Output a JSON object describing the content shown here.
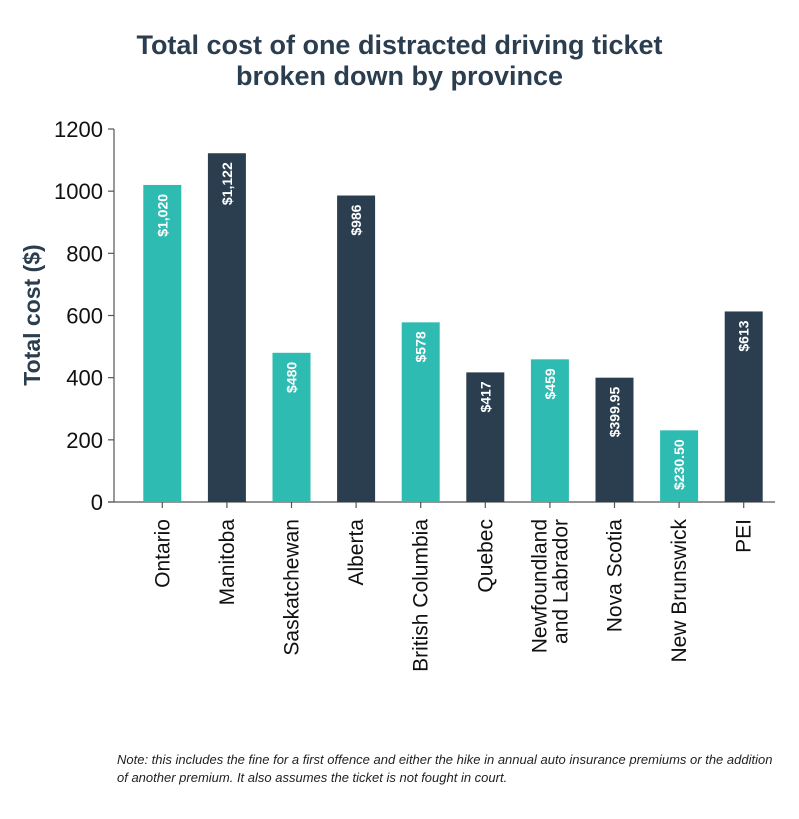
{
  "chart_data": {
    "type": "bar",
    "title_lines": [
      "Total cost of one distracted driving ticket",
      "broken down by province"
    ],
    "ylabel": "Total cost ($)",
    "ylim": [
      0,
      1200
    ],
    "yticks": [
      0,
      200,
      400,
      600,
      800,
      1000,
      1200
    ],
    "categories": [
      "Ontario",
      "Manitoba",
      "Saskatchewan",
      "Alberta",
      "British Columbia",
      "Quebec",
      "Newfoundland and Labrador",
      "Nova Scotia",
      "New Brunswick",
      "PEI"
    ],
    "category_labels": [
      [
        "Ontario"
      ],
      [
        "Manitoba"
      ],
      [
        "Saskatchewan"
      ],
      [
        "Alberta"
      ],
      [
        "British Columbia"
      ],
      [
        "Quebec"
      ],
      [
        "Newfoundland",
        "and Labrador"
      ],
      [
        "Nova Scotia"
      ],
      [
        "New Brunswick"
      ],
      [
        "PEI"
      ]
    ],
    "values": [
      1020,
      1122,
      480,
      986,
      578,
      417,
      459,
      399.95,
      230.5,
      613
    ],
    "data_labels": [
      "$1,020",
      "$1,122",
      "$480",
      "$986",
      "$578",
      "$417",
      "$459",
      "$399.95",
      "$230.50",
      "$613"
    ],
    "bar_colors": [
      "#2dbbb2",
      "#2b3e50",
      "#2dbbb2",
      "#2b3e50",
      "#2dbbb2",
      "#2b3e50",
      "#2dbbb2",
      "#2b3e50",
      "#2dbbb2",
      "#2b3e50"
    ],
    "grid": false
  },
  "note": "Note: this includes the fine for a first offence and either the hike in annual auto insurance premiums or the addition of another premium. It also assumes the ticket is not fought in court."
}
